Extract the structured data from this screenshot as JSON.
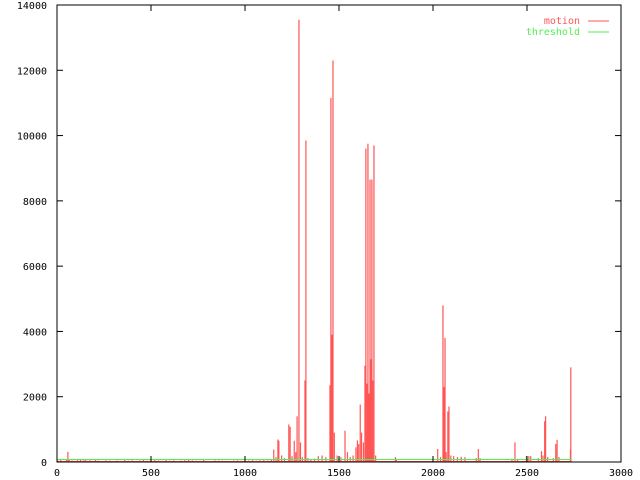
{
  "chart_data": {
    "type": "line",
    "style": "impulses",
    "title": "",
    "xlabel": "",
    "ylabel": "",
    "xlim": [
      0,
      3000
    ],
    "ylim": [
      0,
      14000
    ],
    "xticks": [
      "0",
      "500",
      "1000",
      "1500",
      "2000",
      "2500",
      "3000"
    ],
    "yticks": [
      "0",
      "2000",
      "4000",
      "6000",
      "8000",
      "10000",
      "12000",
      "14000"
    ],
    "grid": false,
    "legend": "top-right",
    "series": [
      {
        "name": "motion",
        "color": "#ff5555",
        "points": [
          [
            5,
            40
          ],
          [
            20,
            60
          ],
          [
            35,
            30
          ],
          [
            50,
            70
          ],
          [
            58,
            310
          ],
          [
            65,
            80
          ],
          [
            80,
            50
          ],
          [
            95,
            40
          ],
          [
            110,
            60
          ],
          [
            125,
            90
          ],
          [
            140,
            50
          ],
          [
            150,
            70
          ],
          [
            160,
            40
          ],
          [
            175,
            55
          ],
          [
            190,
            35
          ],
          [
            205,
            60
          ],
          [
            220,
            45
          ],
          [
            240,
            30
          ],
          [
            260,
            50
          ],
          [
            280,
            40
          ],
          [
            300,
            25
          ],
          [
            320,
            45
          ],
          [
            340,
            35
          ],
          [
            360,
            60
          ],
          [
            380,
            40
          ],
          [
            400,
            50
          ],
          [
            420,
            30
          ],
          [
            440,
            45
          ],
          [
            460,
            65
          ],
          [
            480,
            40
          ],
          [
            500,
            55
          ],
          [
            520,
            70
          ],
          [
            540,
            50
          ],
          [
            560,
            35
          ],
          [
            580,
            60
          ],
          [
            600,
            40
          ],
          [
            620,
            50
          ],
          [
            640,
            30
          ],
          [
            660,
            45
          ],
          [
            680,
            55
          ],
          [
            700,
            65
          ],
          [
            720,
            50
          ],
          [
            740,
            40
          ],
          [
            760,
            35
          ],
          [
            780,
            60
          ],
          [
            800,
            30
          ],
          [
            820,
            25
          ],
          [
            840,
            50
          ],
          [
            860,
            45
          ],
          [
            880,
            40
          ],
          [
            900,
            35
          ],
          [
            920,
            30
          ],
          [
            940,
            45
          ],
          [
            960,
            50
          ],
          [
            980,
            40
          ],
          [
            1000,
            35
          ],
          [
            1020,
            45
          ],
          [
            1040,
            55
          ],
          [
            1060,
            40
          ],
          [
            1080,
            50
          ],
          [
            1100,
            60
          ],
          [
            1120,
            45
          ],
          [
            1140,
            80
          ],
          [
            1153,
            380
          ],
          [
            1165,
            150
          ],
          [
            1175,
            690
          ],
          [
            1180,
            650
          ],
          [
            1195,
            200
          ],
          [
            1210,
            120
          ],
          [
            1233,
            1150
          ],
          [
            1240,
            1080
          ],
          [
            1250,
            180
          ],
          [
            1262,
            650
          ],
          [
            1270,
            300
          ],
          [
            1277,
            1400
          ],
          [
            1287,
            13550
          ],
          [
            1295,
            600
          ],
          [
            1305,
            150
          ],
          [
            1319,
            2500
          ],
          [
            1324,
            9850
          ],
          [
            1335,
            120
          ],
          [
            1350,
            80
          ],
          [
            1370,
            100
          ],
          [
            1390,
            180
          ],
          [
            1410,
            200
          ],
          [
            1430,
            150
          ],
          [
            1452,
            2350
          ],
          [
            1457,
            11150
          ],
          [
            1463,
            3900
          ],
          [
            1468,
            12300
          ],
          [
            1475,
            900
          ],
          [
            1490,
            200
          ],
          [
            1510,
            150
          ],
          [
            1532,
            960
          ],
          [
            1545,
            300
          ],
          [
            1560,
            150
          ],
          [
            1575,
            200
          ],
          [
            1590,
            450
          ],
          [
            1598,
            660
          ],
          [
            1605,
            550
          ],
          [
            1613,
            1760
          ],
          [
            1620,
            900
          ],
          [
            1630,
            600
          ],
          [
            1638,
            2950
          ],
          [
            1643,
            9600
          ],
          [
            1649,
            2400
          ],
          [
            1654,
            9750
          ],
          [
            1660,
            2100
          ],
          [
            1665,
            8650
          ],
          [
            1670,
            3150
          ],
          [
            1675,
            8650
          ],
          [
            1680,
            2500
          ],
          [
            1686,
            9700
          ],
          [
            1695,
            200
          ],
          [
            1800,
            150
          ],
          [
            1805,
            100
          ],
          [
            2025,
            400
          ],
          [
            2040,
            150
          ],
          [
            2053,
            4800
          ],
          [
            2058,
            2300
          ],
          [
            2064,
            3800
          ],
          [
            2070,
            300
          ],
          [
            2079,
            1550
          ],
          [
            2085,
            1700
          ],
          [
            2095,
            200
          ],
          [
            2110,
            180
          ],
          [
            2130,
            150
          ],
          [
            2150,
            160
          ],
          [
            2170,
            150
          ],
          [
            2230,
            120
          ],
          [
            2241,
            400
          ],
          [
            2250,
            120
          ],
          [
            2420,
            100
          ],
          [
            2436,
            600
          ],
          [
            2450,
            80
          ],
          [
            2497,
            180
          ],
          [
            2510,
            180
          ],
          [
            2520,
            180
          ],
          [
            2560,
            120
          ],
          [
            2577,
            330
          ],
          [
            2585,
            200
          ],
          [
            2594,
            1250
          ],
          [
            2599,
            1400
          ],
          [
            2610,
            150
          ],
          [
            2640,
            120
          ],
          [
            2653,
            550
          ],
          [
            2660,
            680
          ],
          [
            2670,
            150
          ],
          [
            2731,
            380
          ],
          [
            2733,
            2900
          ]
        ]
      },
      {
        "name": "threshold",
        "color": "#55ee55",
        "points": [
          [
            0,
            75
          ],
          [
            2740,
            75
          ]
        ]
      }
    ]
  }
}
